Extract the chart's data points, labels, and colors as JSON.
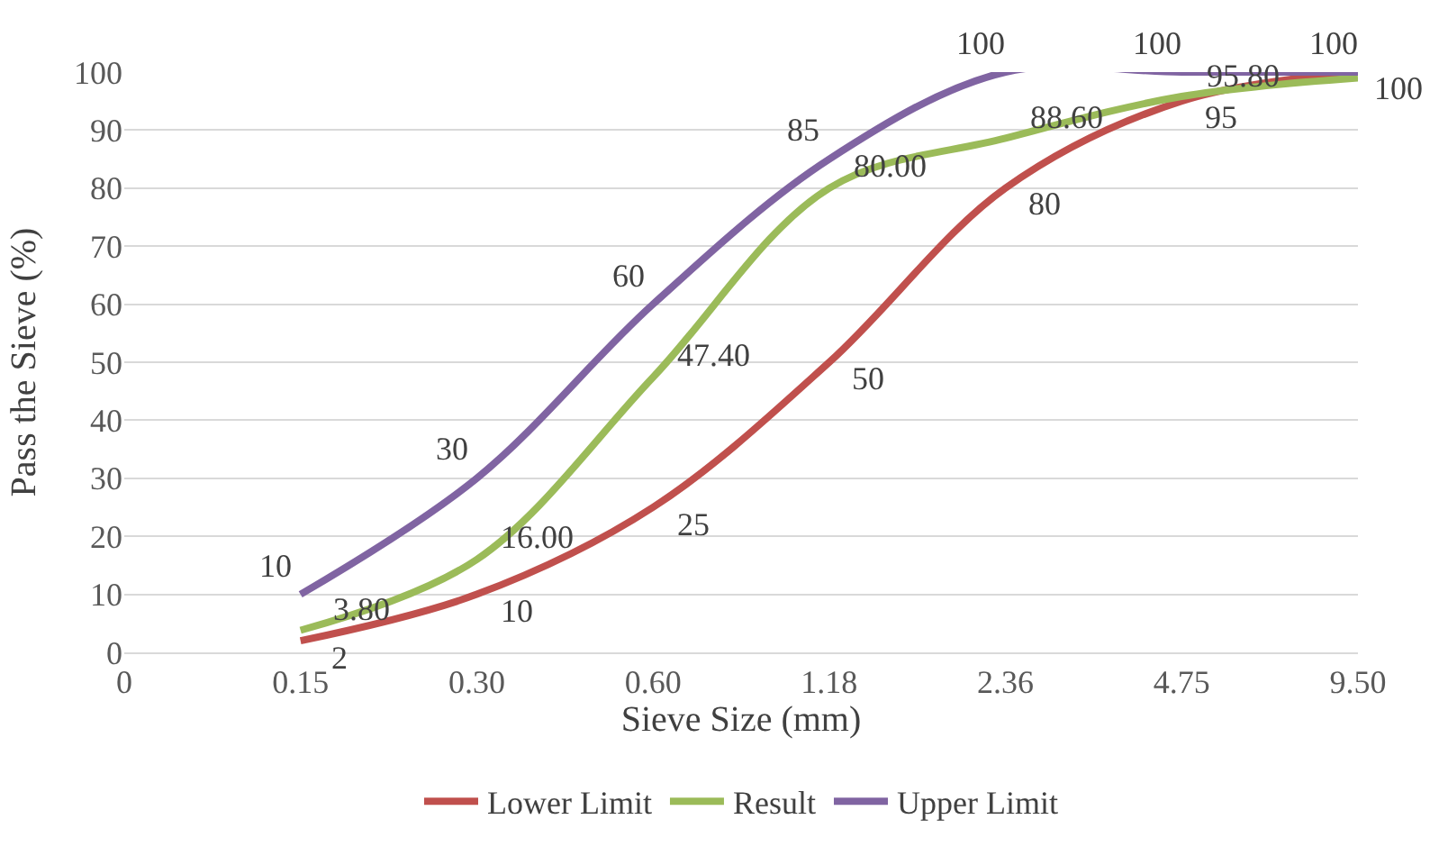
{
  "chart_data": {
    "type": "line",
    "xlabel": "Sieve Size (mm)",
    "ylabel": "Pass the Sieve (%)",
    "categories": [
      "0",
      "0.15",
      "0.30",
      "0.60",
      "1.18",
      "2.36",
      "4.75",
      "9.50"
    ],
    "series": [
      {
        "name": "Lower Limit",
        "color": "#c0504d",
        "values": [
          null,
          2,
          10,
          25,
          50,
          80,
          95,
          100
        ],
        "value_labels": [
          null,
          "2",
          "10",
          "25",
          "50",
          "80",
          "95",
          "100"
        ]
      },
      {
        "name": "Result",
        "color": "#9bbb59",
        "values": [
          null,
          3.8,
          16.0,
          47.4,
          80.0,
          88.6,
          95.8,
          99
        ],
        "value_labels": [
          null,
          "3.80",
          "16.00",
          "47.40",
          "80.00",
          "88.60",
          "95.80",
          null
        ]
      },
      {
        "name": "Upper Limit",
        "color": "#8064a2",
        "values": [
          null,
          10,
          30,
          60,
          85,
          100,
          100,
          100
        ],
        "value_labels": [
          null,
          "10",
          "30",
          "60",
          "85",
          "100",
          "100",
          "100"
        ]
      }
    ],
    "ylim": [
      0,
      100
    ],
    "yticks": [
      0,
      10,
      20,
      30,
      40,
      50,
      60,
      70,
      80,
      90,
      100
    ],
    "grid": "y",
    "legend": "bottom",
    "marker": "none",
    "line_style": "solid"
  }
}
